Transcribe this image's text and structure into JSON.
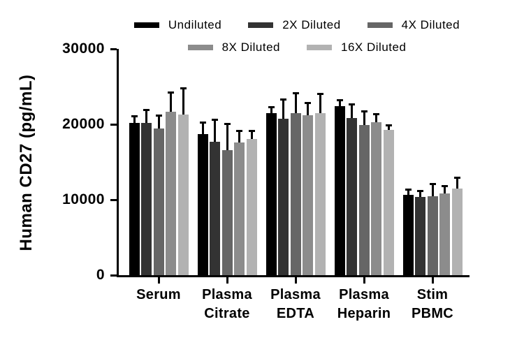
{
  "chart_data": {
    "type": "bar",
    "title": "",
    "xlabel": "",
    "ylabel": "Human CD27 (pg/mL)",
    "ylim": [
      0,
      30000
    ],
    "yticks": [
      0,
      10000,
      20000,
      30000
    ],
    "ytick_labels": [
      "0",
      "10000",
      "20000",
      "30000"
    ],
    "categories": [
      "Serum",
      "Plasma Citrate",
      "Plasma EDTA",
      "Plasma Heparin",
      "Stim PBMC"
    ],
    "grid": false,
    "legend_position": "top",
    "error_bars": "upper, black caps",
    "background_color": "#ffffff",
    "axis_color": "#000000",
    "error_bar_color": "#000000",
    "series": [
      {
        "name": "Undiluted",
        "color": "#000000",
        "values": [
          20200,
          18700,
          21500,
          22400,
          10650
        ],
        "errors": [
          850,
          1550,
          800,
          800,
          700
        ]
      },
      {
        "name": "2X Diluted",
        "color": "#333333",
        "values": [
          20200,
          17700,
          20700,
          20800,
          10350
        ],
        "errors": [
          1700,
          2900,
          2550,
          1850,
          850
        ]
      },
      {
        "name": "4X Diluted",
        "color": "#666666",
        "values": [
          19400,
          16600,
          21500,
          19900,
          10500
        ],
        "errors": [
          1800,
          3450,
          2650,
          1800,
          1550
        ]
      },
      {
        "name": "8X Diluted",
        "color": "#8c8c8c",
        "values": [
          21700,
          17600,
          21200,
          20300,
          10850
        ],
        "errors": [
          2500,
          1550,
          1650,
          1000,
          1000
        ]
      },
      {
        "name": "16X Diluted",
        "color": "#b2b2b2",
        "values": [
          21300,
          18100,
          21500,
          19300,
          11450
        ],
        "errors": [
          3500,
          1000,
          2500,
          550,
          1450
        ]
      }
    ],
    "legend_rows": [
      [
        0,
        1,
        2
      ],
      [
        3,
        4
      ]
    ]
  }
}
